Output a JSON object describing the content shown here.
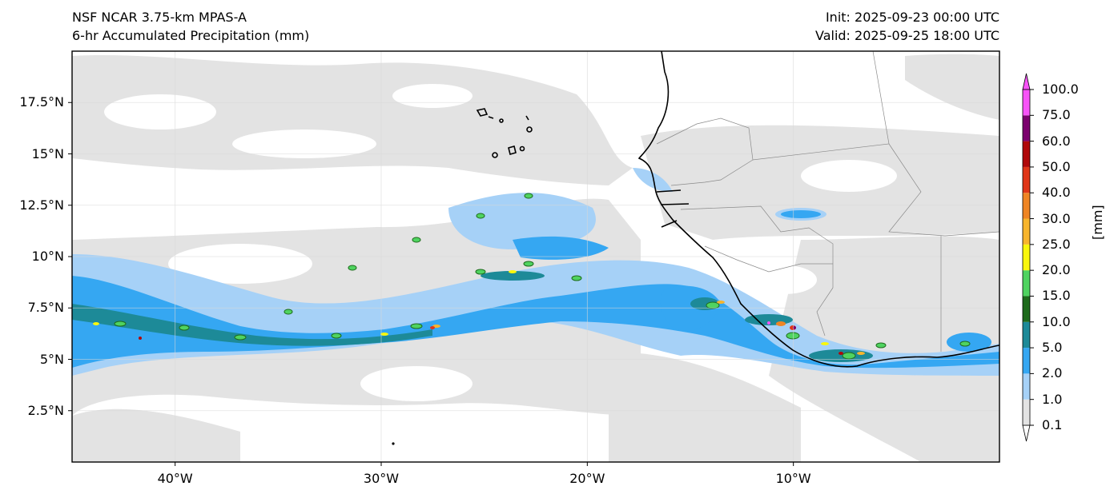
{
  "header": {
    "title_left_line1": "NSF NCAR 3.75-km MPAS-A",
    "title_left_line2": "6-hr Accumulated Precipitation (mm)",
    "init_label": "Init: 2025-09-23 00:00 UTC",
    "valid_label": "Valid: 2025-09-25 18:00 UTC"
  },
  "map": {
    "extent": {
      "lon_min": -45,
      "lon_max": 0,
      "lat_min": 0,
      "lat_max": 20
    },
    "lat_ticks": [
      {
        "value": 17.5,
        "label": "17.5°N"
      },
      {
        "value": 15,
        "label": "15°N"
      },
      {
        "value": 12.5,
        "label": "12.5°N"
      },
      {
        "value": 10,
        "label": "10°N"
      },
      {
        "value": 7.5,
        "label": "7.5°N"
      },
      {
        "value": 5,
        "label": "5°N"
      },
      {
        "value": 2.5,
        "label": "2.5°N"
      }
    ],
    "lon_ticks": [
      {
        "value": -40,
        "label": "40°W"
      },
      {
        "value": -30,
        "label": "30°W"
      },
      {
        "value": -20,
        "label": "20°W"
      },
      {
        "value": -10,
        "label": "10°W"
      }
    ],
    "gridlines": true
  },
  "colorbar": {
    "unit_label": "[mm]",
    "levels": [
      "0.1",
      "1.0",
      "2.0",
      "5.0",
      "10.0",
      "15.0",
      "20.0",
      "25.0",
      "30.0",
      "40.0",
      "50.0",
      "60.0",
      "75.0",
      "100.0"
    ],
    "colors": [
      "#e3e3e3",
      "#a6d1f7",
      "#35a7f2",
      "#1d8a98",
      "#1e6b1c",
      "#4fd360",
      "#f9f70c",
      "#f7b52d",
      "#ef8524",
      "#e03618",
      "#b0080a",
      "#7c006e",
      "#f753f7"
    ]
  }
}
